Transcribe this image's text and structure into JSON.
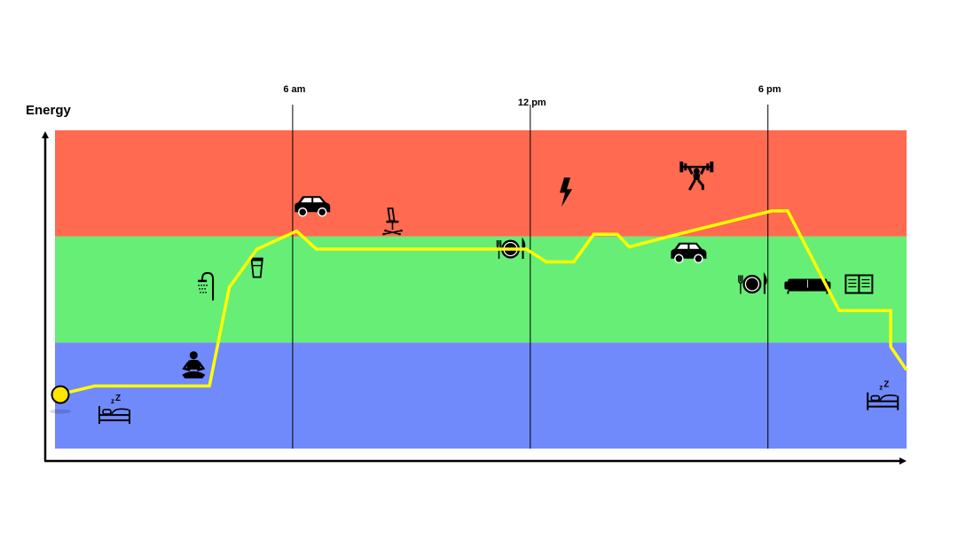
{
  "chart_data": {
    "type": "line",
    "ylabel": "Energy",
    "xlabel": "",
    "title": "",
    "bands": [
      {
        "level": "low",
        "color": "#7089fb"
      },
      {
        "level": "medium",
        "color": "#66ee77"
      },
      {
        "level": "high",
        "color": "#ff6a50"
      }
    ],
    "time_markers": [
      {
        "label": "6 am",
        "hour": 6
      },
      {
        "label": "12 pm",
        "hour": 12
      },
      {
        "label": "6 pm",
        "hour": 18
      }
    ],
    "xlim": [
      0,
      21.5
    ],
    "ylim": [
      0,
      3
    ],
    "line_color": "#ffff00",
    "series": [
      {
        "x": [
          0,
          1,
          3.9,
          4.4,
          5.1,
          6.1,
          6.6,
          8.5,
          10.5,
          11.9,
          12.4,
          13.1,
          13.6,
          14.2,
          14.5,
          15.4,
          18.1,
          18.5,
          19.8,
          20.2,
          21.1,
          21.1,
          21.5
        ],
        "y": [
          0.5,
          0.59,
          0.59,
          1.52,
          1.88,
          2.05,
          1.88,
          1.88,
          1.88,
          1.88,
          1.76,
          1.76,
          2.02,
          2.02,
          1.9,
          1.99,
          2.24,
          2.24,
          1.3,
          1.3,
          1.3,
          0.96,
          0.74
        ]
      }
    ],
    "start_point": {
      "x": 0,
      "y": 0.5,
      "color": "#ffe600"
    },
    "activities": [
      {
        "icon": "sleep-icon",
        "x": 1.5,
        "y": 0.35
      },
      {
        "icon": "meditate-icon",
        "x": 3.5,
        "y": 0.78
      },
      {
        "icon": "shower-icon",
        "x": 3.9,
        "y": 1.53
      },
      {
        "icon": "coffee-icon",
        "x": 5.1,
        "y": 1.7
      },
      {
        "icon": "car-icon",
        "x": 6.5,
        "y": 2.28
      },
      {
        "icon": "office-chair-icon",
        "x": 8.5,
        "y": 2.13
      },
      {
        "icon": "plate-cutlery-icon",
        "x": 11.5,
        "y": 1.88
      },
      {
        "icon": "lightning-icon",
        "x": 12.9,
        "y": 2.42
      },
      {
        "icon": "car-icon",
        "x": 16.0,
        "y": 1.84
      },
      {
        "icon": "weightlifting-icon",
        "x": 16.2,
        "y": 2.58
      },
      {
        "icon": "plate-cutlery-icon",
        "x": 17.6,
        "y": 1.55
      },
      {
        "icon": "sofa-icon",
        "x": 19.0,
        "y": 1.55
      },
      {
        "icon": "book-icon",
        "x": 20.3,
        "y": 1.55
      },
      {
        "icon": "sleep-icon",
        "x": 20.9,
        "y": 0.48
      }
    ]
  }
}
